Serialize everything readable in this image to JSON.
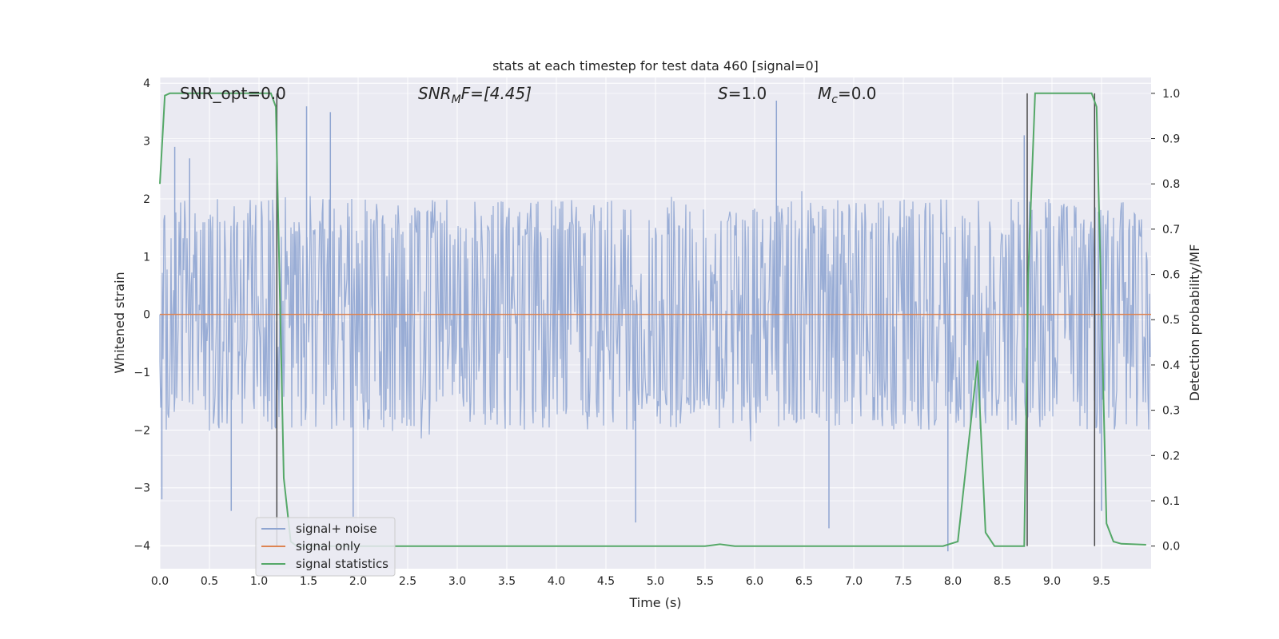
{
  "chart_data": {
    "type": "line",
    "title": "stats at each timestep for test data 460 [signal=0]",
    "xlabel": "Time (s)",
    "ylabel_left": "Whitened strain",
    "ylabel_right": "Detection probability/MF",
    "xlim": [
      0,
      10
    ],
    "ylim_left": [
      -4.4,
      4.1
    ],
    "ylim_right": [
      -0.05,
      1.035
    ],
    "x_ticks": [
      "0.0",
      "0.5",
      "1.0",
      "1.5",
      "2.0",
      "2.5",
      "3.0",
      "3.5",
      "4.0",
      "4.5",
      "5.0",
      "5.5",
      "6.0",
      "6.5",
      "7.0",
      "7.5",
      "8.0",
      "8.5",
      "9.0",
      "9.5"
    ],
    "y_ticks_left": [
      "4",
      "3",
      "2",
      "1",
      "0",
      "−1",
      "−2",
      "−3",
      "−4"
    ],
    "y_ticks_right": [
      "1.0",
      "0.9",
      "0.8",
      "0.7",
      "0.6",
      "0.5",
      "0.4",
      "0.3",
      "0.2",
      "0.1",
      "0.0"
    ],
    "annotations": {
      "snr_opt": "SNR_opt=0.0",
      "snr_mf_symbol": "SNR",
      "snr_mf_sub": "M",
      "snr_mf_rest": "F=[4.45]",
      "s_symbol": "S",
      "s_rest": "=1.0",
      "mc_symbol": "M",
      "mc_sub": "c",
      "mc_rest": "=0.0"
    },
    "series": [
      {
        "name": "signal+ noise",
        "color": "#8fa5d1",
        "description_hidden": false,
        "envelope_typical": 1.8,
        "notable_spikes": [
          {
            "x": 0.02,
            "y": -3.2
          },
          {
            "x": 0.15,
            "y": 2.9
          },
          {
            "x": 0.3,
            "y": 2.7
          },
          {
            "x": 0.72,
            "y": -3.4
          },
          {
            "x": 1.48,
            "y": 3.6
          },
          {
            "x": 1.72,
            "y": 3.5
          },
          {
            "x": 1.95,
            "y": -3.5
          },
          {
            "x": 4.8,
            "y": -3.6
          },
          {
            "x": 6.22,
            "y": 3.7
          },
          {
            "x": 6.75,
            "y": -3.7
          },
          {
            "x": 7.95,
            "y": -4.1
          },
          {
            "x": 8.72,
            "y": 3.1
          },
          {
            "x": 9.5,
            "y": -3.4
          }
        ]
      },
      {
        "name": "signal only",
        "color": "#dd8452",
        "values_constant": 0
      },
      {
        "name": "signal statistics",
        "color": "#55a868",
        "axis": "right",
        "x": [
          0.0,
          0.05,
          0.1,
          1.12,
          1.17,
          1.25,
          1.32,
          1.38,
          5.5,
          5.65,
          5.8,
          7.9,
          8.05,
          8.12,
          8.25,
          8.33,
          8.42,
          8.72,
          8.76,
          8.83,
          9.4,
          9.45,
          9.55,
          9.62,
          9.7,
          9.95
        ],
        "y": [
          0.8,
          0.995,
          1.0,
          1.0,
          0.97,
          0.15,
          0.01,
          0.0,
          0.0,
          0.004,
          0.0,
          0.0,
          0.01,
          0.15,
          0.41,
          0.03,
          0.0,
          0.0,
          0.6,
          1.0,
          1.0,
          0.97,
          0.05,
          0.01,
          0.005,
          0.003
        ]
      }
    ],
    "vertical_markers": [
      1.18,
      8.75,
      9.43
    ],
    "legend": {
      "position": "lower-left",
      "items": [
        "signal+ noise",
        "signal only",
        "signal statistics"
      ]
    },
    "grid": true,
    "colors": {
      "plot_bg": "#eaeaf2",
      "grid": "#ffffff",
      "marker": "#4a4a4a"
    }
  }
}
